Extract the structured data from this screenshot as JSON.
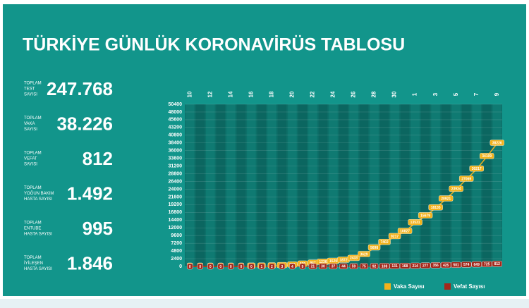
{
  "header": {
    "title": "TÜRKİYE GÜNLÜK KORONAVİRÜS TABLOSU"
  },
  "stats": [
    {
      "label": [
        "TOPLAM",
        "TEST",
        "SAYISI"
      ],
      "value": "247.768"
    },
    {
      "label": [
        "TOPLAM",
        "VAKA",
        "SAYISI"
      ],
      "value": "38.226"
    },
    {
      "label": [
        "TOPLAM",
        "VEFAT",
        "SAYISI"
      ],
      "value": "812"
    },
    {
      "label": [
        "TOPLAM",
        "YOĞUN BAKIM",
        "HASTA SAYISI"
      ],
      "value": "1.492"
    },
    {
      "label": [
        "TOPLAM",
        "ENTUBE",
        "HASTA SAYISI"
      ],
      "value": "995"
    },
    {
      "label": [
        "TOPLAM",
        "İYİLEŞEN",
        "HASTA SAYISI"
      ],
      "value": "1.846"
    }
  ],
  "chart_data": {
    "type": "line",
    "categories": [
      "10",
      null,
      "12",
      null,
      "14",
      null,
      "16",
      null,
      "18",
      null,
      "20",
      null,
      "22",
      null,
      "24",
      null,
      "26",
      null,
      "28",
      null,
      "30",
      null,
      "1",
      null,
      "3",
      null,
      "5",
      null,
      "7",
      null,
      "9"
    ],
    "series": [
      {
        "name": "Vaka Sayısı",
        "color": "#f2b21b",
        "values": [
          1,
          1,
          1,
          5,
          5,
          6,
          18,
          47,
          98,
          191,
          359,
          670,
          947,
          1236,
          1529,
          1872,
          2433,
          3629,
          5698,
          7402,
          9217,
          10827,
          13531,
          15679,
          18135,
          20921,
          23934,
          27069,
          30217,
          34109,
          38226
        ]
      },
      {
        "name": "Vefat Sayısı",
        "color": "#a3281b",
        "values": [
          0,
          0,
          0,
          0,
          0,
          0,
          0,
          1,
          2,
          3,
          4,
          9,
          21,
          30,
          37,
          44,
          59,
          75,
          92,
          108,
          131,
          168,
          214,
          277,
          356,
          425,
          501,
          574,
          649,
          725,
          812
        ]
      }
    ],
    "ylim": [
      0,
      50400
    ],
    "yticks": [
      0,
      2400,
      4800,
      7200,
      9600,
      12000,
      14400,
      16800,
      19200,
      21600,
      24000,
      26400,
      28800,
      31200,
      33600,
      36000,
      38400,
      40800,
      43200,
      45600,
      48000,
      50400
    ],
    "grid": true,
    "legend": "bottom-right"
  }
}
